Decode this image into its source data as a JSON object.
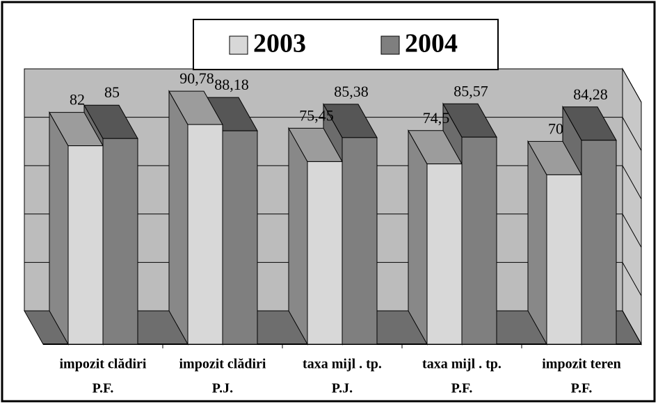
{
  "chart_data": {
    "type": "bar3d",
    "categories": [
      [
        "impozit clădiri",
        "P.F."
      ],
      [
        "impozit clădiri",
        "P.J."
      ],
      [
        "taxa mijl . tp.",
        "P.J."
      ],
      [
        "taxa mijl . tp.",
        "P.F."
      ],
      [
        "impozit teren",
        "P.F."
      ]
    ],
    "series": [
      {
        "name": "2003",
        "color": "#d8d8d8",
        "values": [
          82,
          90.78,
          75.45,
          74.5,
          70
        ],
        "value_labels": [
          "82",
          "90,78",
          "75,45",
          "74,5",
          "70"
        ]
      },
      {
        "name": "2004",
        "color": "#7f7f7f",
        "values": [
          85,
          88.18,
          85.38,
          85.57,
          84.28
        ],
        "value_labels": [
          "85",
          "88,18",
          "85,38",
          "85,57",
          "84,28"
        ]
      }
    ],
    "ylim": [
      0,
      100
    ],
    "yticks": [
      0,
      20,
      40,
      60,
      80,
      100
    ],
    "grid": true,
    "legend": "top"
  }
}
